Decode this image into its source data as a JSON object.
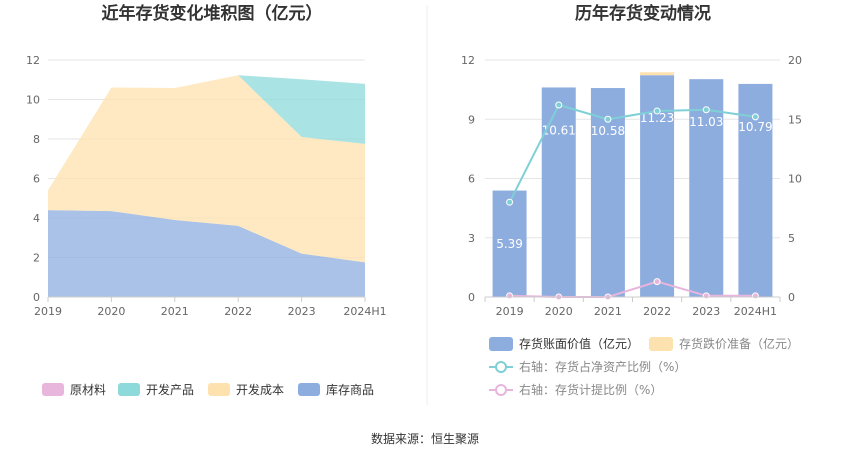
{
  "source_label": "数据来源：恒生聚源",
  "chart_data": [
    {
      "type": "area",
      "stacked": true,
      "title": "近年存货变化堆积图（亿元）",
      "categories": [
        "2019",
        "2020",
        "2021",
        "2022",
        "2023",
        "2024H1"
      ],
      "y_ticks": [
        "0",
        "2",
        "4",
        "6",
        "8",
        "10",
        "12"
      ],
      "ylim": [
        0,
        12
      ],
      "grid": true,
      "legend_position": "bottom",
      "series": [
        {
          "name": "库存商品",
          "color": "#8eaddf",
          "values": [
            4.4,
            4.35,
            3.9,
            3.6,
            2.2,
            1.75
          ]
        },
        {
          "name": "开发成本",
          "color": "#fde1ae",
          "values": [
            1.0,
            6.26,
            6.68,
            7.63,
            5.9,
            6.0
          ]
        },
        {
          "name": "开发产品",
          "color": "#8ed9da",
          "values": [
            0,
            0,
            0,
            0,
            2.93,
            3.04
          ]
        },
        {
          "name": "原材料",
          "color": "#e8b5dc",
          "values": [
            0,
            0,
            0,
            0,
            0,
            0
          ]
        }
      ],
      "legend": [
        {
          "name": "原材料",
          "color": "#e8b5dc"
        },
        {
          "name": "开发产品",
          "color": "#8ed9da"
        },
        {
          "name": "开发成本",
          "color": "#fde1ae"
        },
        {
          "name": "库存商品",
          "color": "#8eaddf"
        }
      ]
    },
    {
      "type": "bar",
      "title": "历年存货变动情况",
      "categories": [
        "2019",
        "2020",
        "2021",
        "2022",
        "2023",
        "2024H1"
      ],
      "y_left_ticks": [
        "0",
        "3",
        "6",
        "9",
        "12"
      ],
      "ylim_left": [
        0,
        12
      ],
      "y_right_ticks": [
        "0",
        "5",
        "10",
        "15",
        "20"
      ],
      "ylim_right": [
        0,
        20
      ],
      "grid": true,
      "legend_position": "bottom",
      "bars": {
        "name": "存货账面价值（亿元）",
        "color": "#8eaddf",
        "values": [
          5.39,
          10.61,
          10.58,
          11.23,
          11.03,
          10.79
        ],
        "labels": [
          "5.39",
          "10.61",
          "10.58",
          "11.23",
          "11.03",
          "10.79"
        ]
      },
      "bars_stack": {
        "name": "存货跌价准备（亿元）",
        "color": "#fde1ae",
        "values": [
          0,
          0,
          0,
          0.15,
          0,
          0
        ]
      },
      "lines": [
        {
          "name": "右轴：存货占净资产比例（%）",
          "color": "#7fd0d6",
          "values": [
            8.0,
            16.2,
            15.0,
            15.7,
            15.8,
            15.2
          ]
        },
        {
          "name": "右轴：存货计提比例（%）",
          "color": "#e8b5dc",
          "values": [
            0.1,
            0.0,
            0.0,
            1.3,
            0.1,
            0.1
          ]
        }
      ]
    }
  ]
}
